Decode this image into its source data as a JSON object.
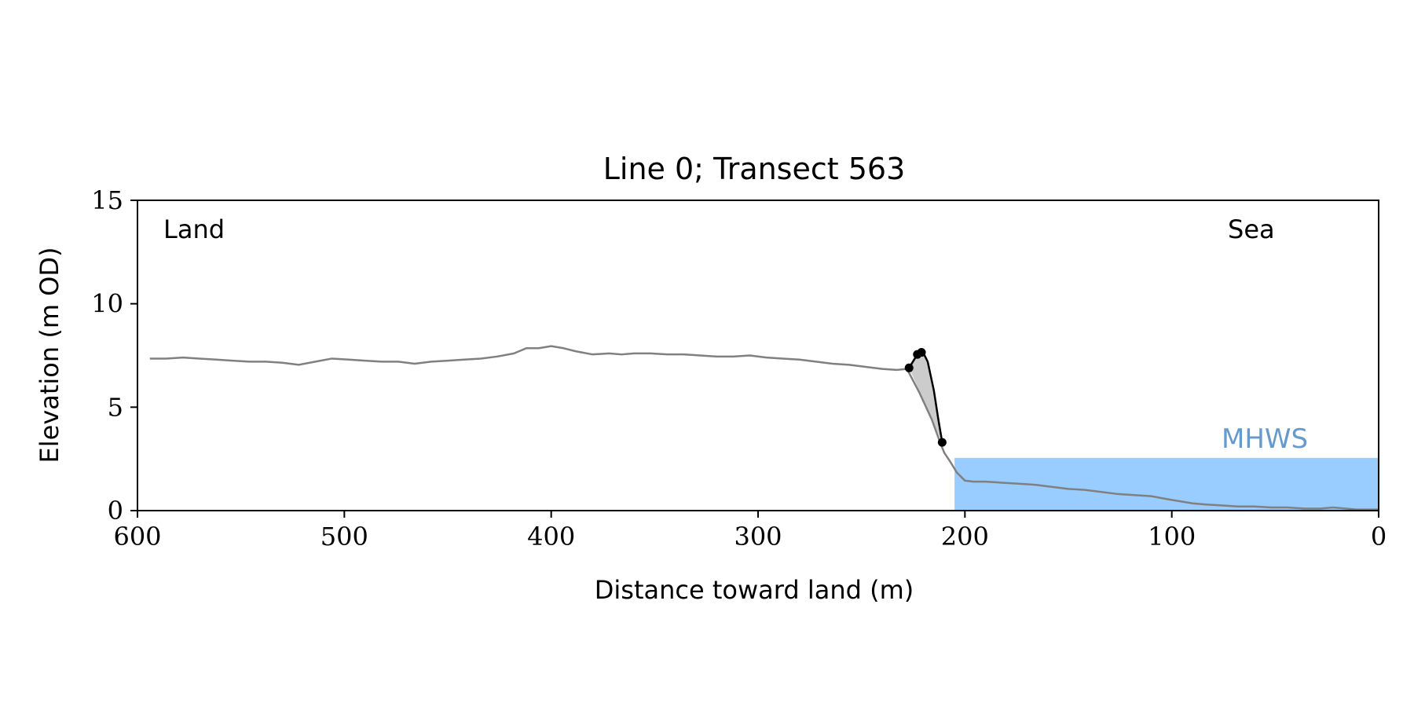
{
  "chart_data": {
    "type": "line",
    "title": "Line 0; Transect 563",
    "xlabel": "Distance toward land (m)",
    "ylabel": "Elevation (m OD)",
    "xlim": [
      600,
      0
    ],
    "ylim": [
      0,
      15
    ],
    "x_ticks": [
      600,
      500,
      400,
      300,
      200,
      100,
      0
    ],
    "y_ticks": [
      0,
      5,
      10,
      15
    ],
    "grid": false,
    "annotations": {
      "left": "Land",
      "right": "Sea",
      "water": "MHWS"
    },
    "mhws": {
      "level": 2.55,
      "x_start": 205,
      "x_end": 0
    },
    "colors": {
      "profile": "#808080",
      "cliff": "#000000",
      "fill": "#cccccc",
      "water": "#99ccff",
      "water_label": "#6699cc"
    },
    "profile": {
      "x": [
        594,
        586,
        578,
        570,
        562,
        554,
        546,
        538,
        530,
        522,
        514,
        506,
        498,
        490,
        482,
        474,
        466,
        458,
        450,
        442,
        434,
        426,
        418,
        412,
        406,
        400,
        394,
        388,
        380,
        372,
        366,
        360,
        352,
        344,
        336,
        328,
        320,
        312,
        304,
        296,
        288,
        280,
        272,
        264,
        256,
        248,
        240,
        233,
        228,
        222,
        216,
        212,
        210,
        207,
        204,
        200,
        196,
        190,
        182,
        174,
        166,
        158,
        150,
        142,
        134,
        126,
        118,
        110,
        102,
        96,
        90,
        84,
        76,
        68,
        60,
        52,
        44,
        36,
        28,
        22,
        16,
        10,
        4,
        0
      ],
      "y": [
        7.35,
        7.35,
        7.4,
        7.35,
        7.3,
        7.25,
        7.2,
        7.2,
        7.15,
        7.05,
        7.2,
        7.35,
        7.3,
        7.25,
        7.2,
        7.2,
        7.1,
        7.2,
        7.25,
        7.3,
        7.35,
        7.45,
        7.6,
        7.85,
        7.85,
        7.95,
        7.85,
        7.7,
        7.55,
        7.6,
        7.55,
        7.6,
        7.6,
        7.55,
        7.55,
        7.5,
        7.45,
        7.45,
        7.5,
        7.4,
        7.35,
        7.3,
        7.2,
        7.1,
        7.05,
        6.95,
        6.85,
        6.8,
        6.85,
        5.7,
        4.4,
        3.3,
        2.8,
        2.35,
        1.85,
        1.45,
        1.4,
        1.4,
        1.35,
        1.3,
        1.25,
        1.15,
        1.05,
        1.0,
        0.9,
        0.8,
        0.75,
        0.7,
        0.55,
        0.45,
        0.35,
        0.3,
        0.25,
        0.2,
        0.2,
        0.15,
        0.15,
        0.1,
        0.1,
        0.15,
        0.1,
        0.05,
        0.05,
        0.05
      ]
    },
    "cliff": {
      "x": [
        227,
        223,
        221,
        220,
        218,
        215,
        213,
        211
      ],
      "y": [
        6.9,
        7.55,
        7.65,
        7.6,
        7.2,
        5.8,
        4.5,
        3.3
      ]
    },
    "cliff_points": {
      "x": [
        227,
        223,
        221,
        211
      ],
      "y": [
        6.9,
        7.55,
        7.65,
        3.3
      ]
    }
  }
}
